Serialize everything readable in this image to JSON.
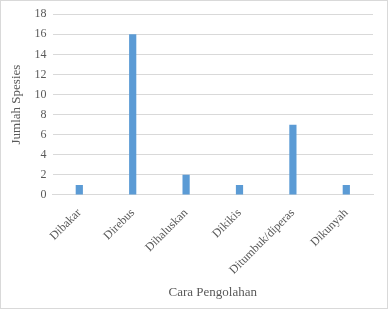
{
  "chart_data": {
    "type": "bar",
    "categories": [
      "Dibakar",
      "Direbus",
      "Dihaluskan",
      "Dikikis",
      "Ditumbuk/diperas",
      "Dikunyah"
    ],
    "values": [
      1,
      16,
      2,
      1,
      7,
      1
    ],
    "color": "#5b9bd5",
    "x_label": "Cara Pengolahan",
    "y_label": "Jumlah Spesies",
    "ylim": [
      0,
      18
    ],
    "yticks": [
      0,
      2,
      4,
      6,
      8,
      10,
      12,
      14,
      16,
      18
    ],
    "grid": true
  }
}
